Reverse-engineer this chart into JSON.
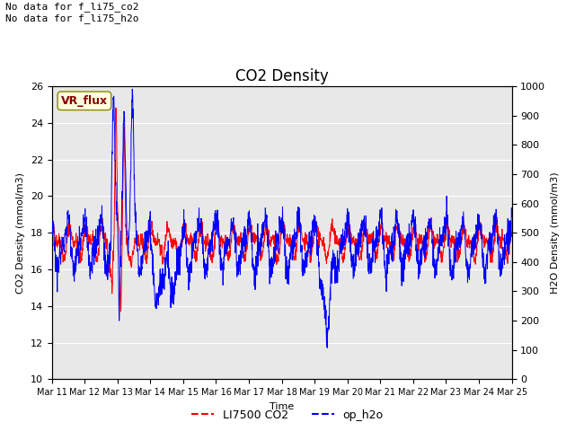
{
  "title": "CO2 Density",
  "xlabel": "Time",
  "ylabel_left": "CO2 Density (mmol/m3)",
  "ylabel_right": "H2O Density (mmol/m3)",
  "ylim_left": [
    10,
    26
  ],
  "ylim_right": [
    0,
    1000
  ],
  "yticks_left": [
    10,
    12,
    14,
    16,
    18,
    20,
    22,
    24,
    26
  ],
  "yticks_right": [
    0,
    100,
    200,
    300,
    400,
    500,
    600,
    700,
    800,
    900,
    1000
  ],
  "xtick_labels": [
    "Mar 11",
    "Mar 12",
    "Mar 13",
    "Mar 14",
    "Mar 15",
    "Mar 16",
    "Mar 17",
    "Mar 18",
    "Mar 19",
    "Mar 20",
    "Mar 21",
    "Mar 22",
    "Mar 23",
    "Mar 24",
    "Mar 25"
  ],
  "annotation_text": "No data for f_li75_co2\nNo data for f_li75_h2o",
  "vr_flux_label": "VR_flux",
  "legend_labels": [
    "LI7500 CO2",
    "op_h2o"
  ],
  "bg_color": "#e8e8e8",
  "line_co2_color": "red",
  "line_h2o_color": "blue",
  "title_fontsize": 12,
  "annotation_fontsize": 8,
  "vr_fontsize": 9
}
